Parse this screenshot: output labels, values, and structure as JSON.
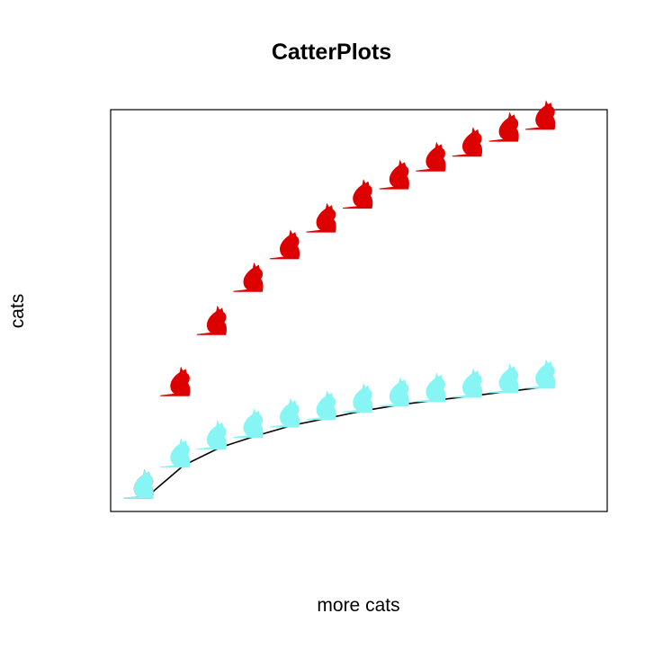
{
  "chart_data": {
    "type": "scatter",
    "title": "CatterPlots",
    "xlabel": "more cats",
    "ylabel": "cats",
    "grid": false,
    "axis_ticks": false,
    "series": [
      {
        "marker": "cat",
        "color": "#dd0000",
        "x": [
          1,
          2,
          3,
          4,
          5,
          6,
          7,
          8,
          9,
          10,
          11,
          12
        ],
        "y": [
          0.0,
          0.69,
          1.1,
          1.39,
          1.61,
          1.79,
          1.95,
          2.08,
          2.2,
          2.3,
          2.4,
          2.48
        ]
      },
      {
        "marker": "cat",
        "color": "#88f5f5",
        "x": [
          1,
          2,
          3,
          4,
          5,
          6,
          7,
          8,
          9,
          10,
          11,
          12
        ],
        "y": [
          0.0,
          0.21,
          0.33,
          0.41,
          0.48,
          0.53,
          0.58,
          0.62,
          0.65,
          0.68,
          0.71,
          0.74
        ]
      }
    ],
    "line": {
      "color": "#000000",
      "x": [
        1,
        2,
        3,
        4,
        5,
        6,
        7,
        8,
        9,
        10,
        11,
        12
      ],
      "y": [
        0.0,
        0.21,
        0.33,
        0.41,
        0.48,
        0.53,
        0.58,
        0.62,
        0.65,
        0.68,
        0.71,
        0.74
      ]
    },
    "xlim": [
      0,
      13.6
    ],
    "ylim": [
      -0.1,
      2.6
    ]
  }
}
